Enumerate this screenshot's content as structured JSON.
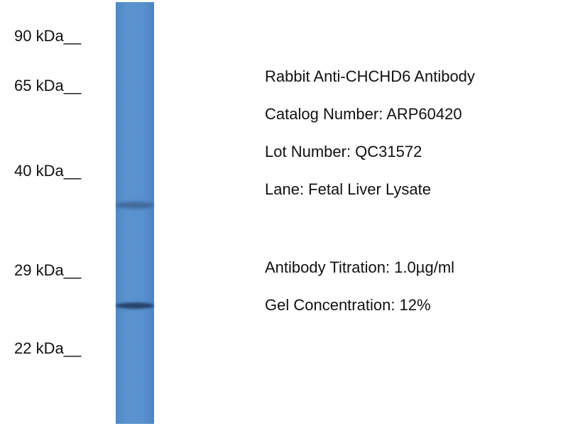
{
  "markers": [
    "90 kDa__",
    "65 kDa__",
    "40 kDa__",
    "29 kDa__",
    "22 kDa__"
  ],
  "info": [
    "Rabbit Anti-CHCHD6 Antibody",
    "Catalog Number: ARP60420",
    "Lot Number: QC31572",
    "Lane: Fetal Liver Lysate",
    "Antibody Titration: 1.0µg/ml",
    "Gel Concentration: 12%"
  ]
}
